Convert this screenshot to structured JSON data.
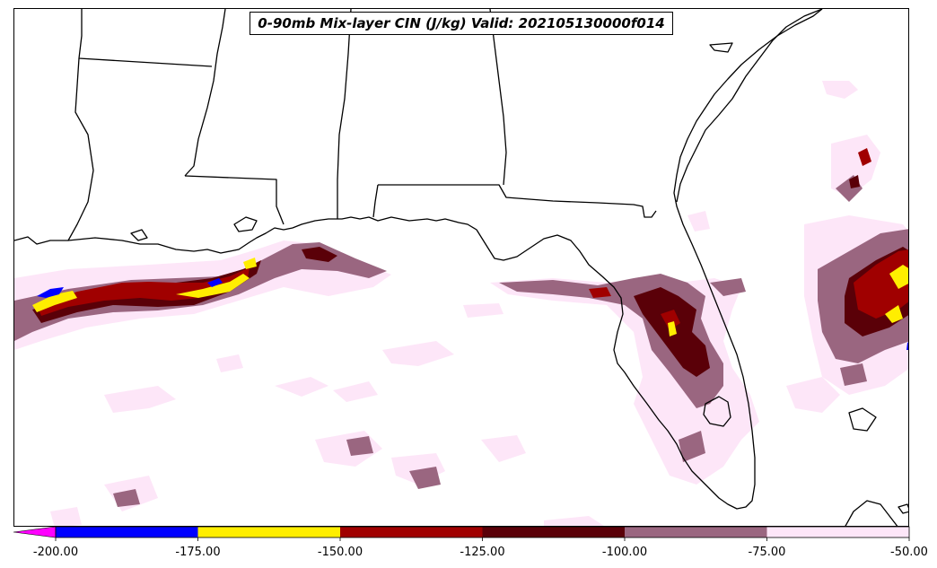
{
  "title": "0-90mb Mix-layer CIN (J/kg) Valid: 202105130000f014",
  "colorbar": {
    "tick_labels": [
      "-200.00",
      "-175.00",
      "-150.00",
      "-125.00",
      "-100.00",
      "-75.00",
      "-50.00"
    ],
    "bins": [
      {
        "range": [
          -225,
          -200
        ],
        "color": "#ff00ff"
      },
      {
        "range": [
          -200,
          -175
        ],
        "color": "#0000ff"
      },
      {
        "range": [
          -175,
          -150
        ],
        "color": "#ffee00"
      },
      {
        "range": [
          -150,
          -125
        ],
        "color": "#a00000"
      },
      {
        "range": [
          -125,
          -100
        ],
        "color": "#5a0008"
      },
      {
        "range": [
          -100,
          -75
        ],
        "color": "#9a6680"
      },
      {
        "range": [
          -75,
          -50
        ],
        "color": "#fde6f8"
      }
    ],
    "extend": "min"
  },
  "colors": {
    "light_pink": "#fde6f8",
    "mauve": "#9a6680",
    "dark_maroon": "#5a0008",
    "dark_red": "#a00000",
    "yellow": "#ffee00",
    "blue": "#0000ff",
    "magenta": "#ff00ff",
    "coast": "#000000"
  }
}
